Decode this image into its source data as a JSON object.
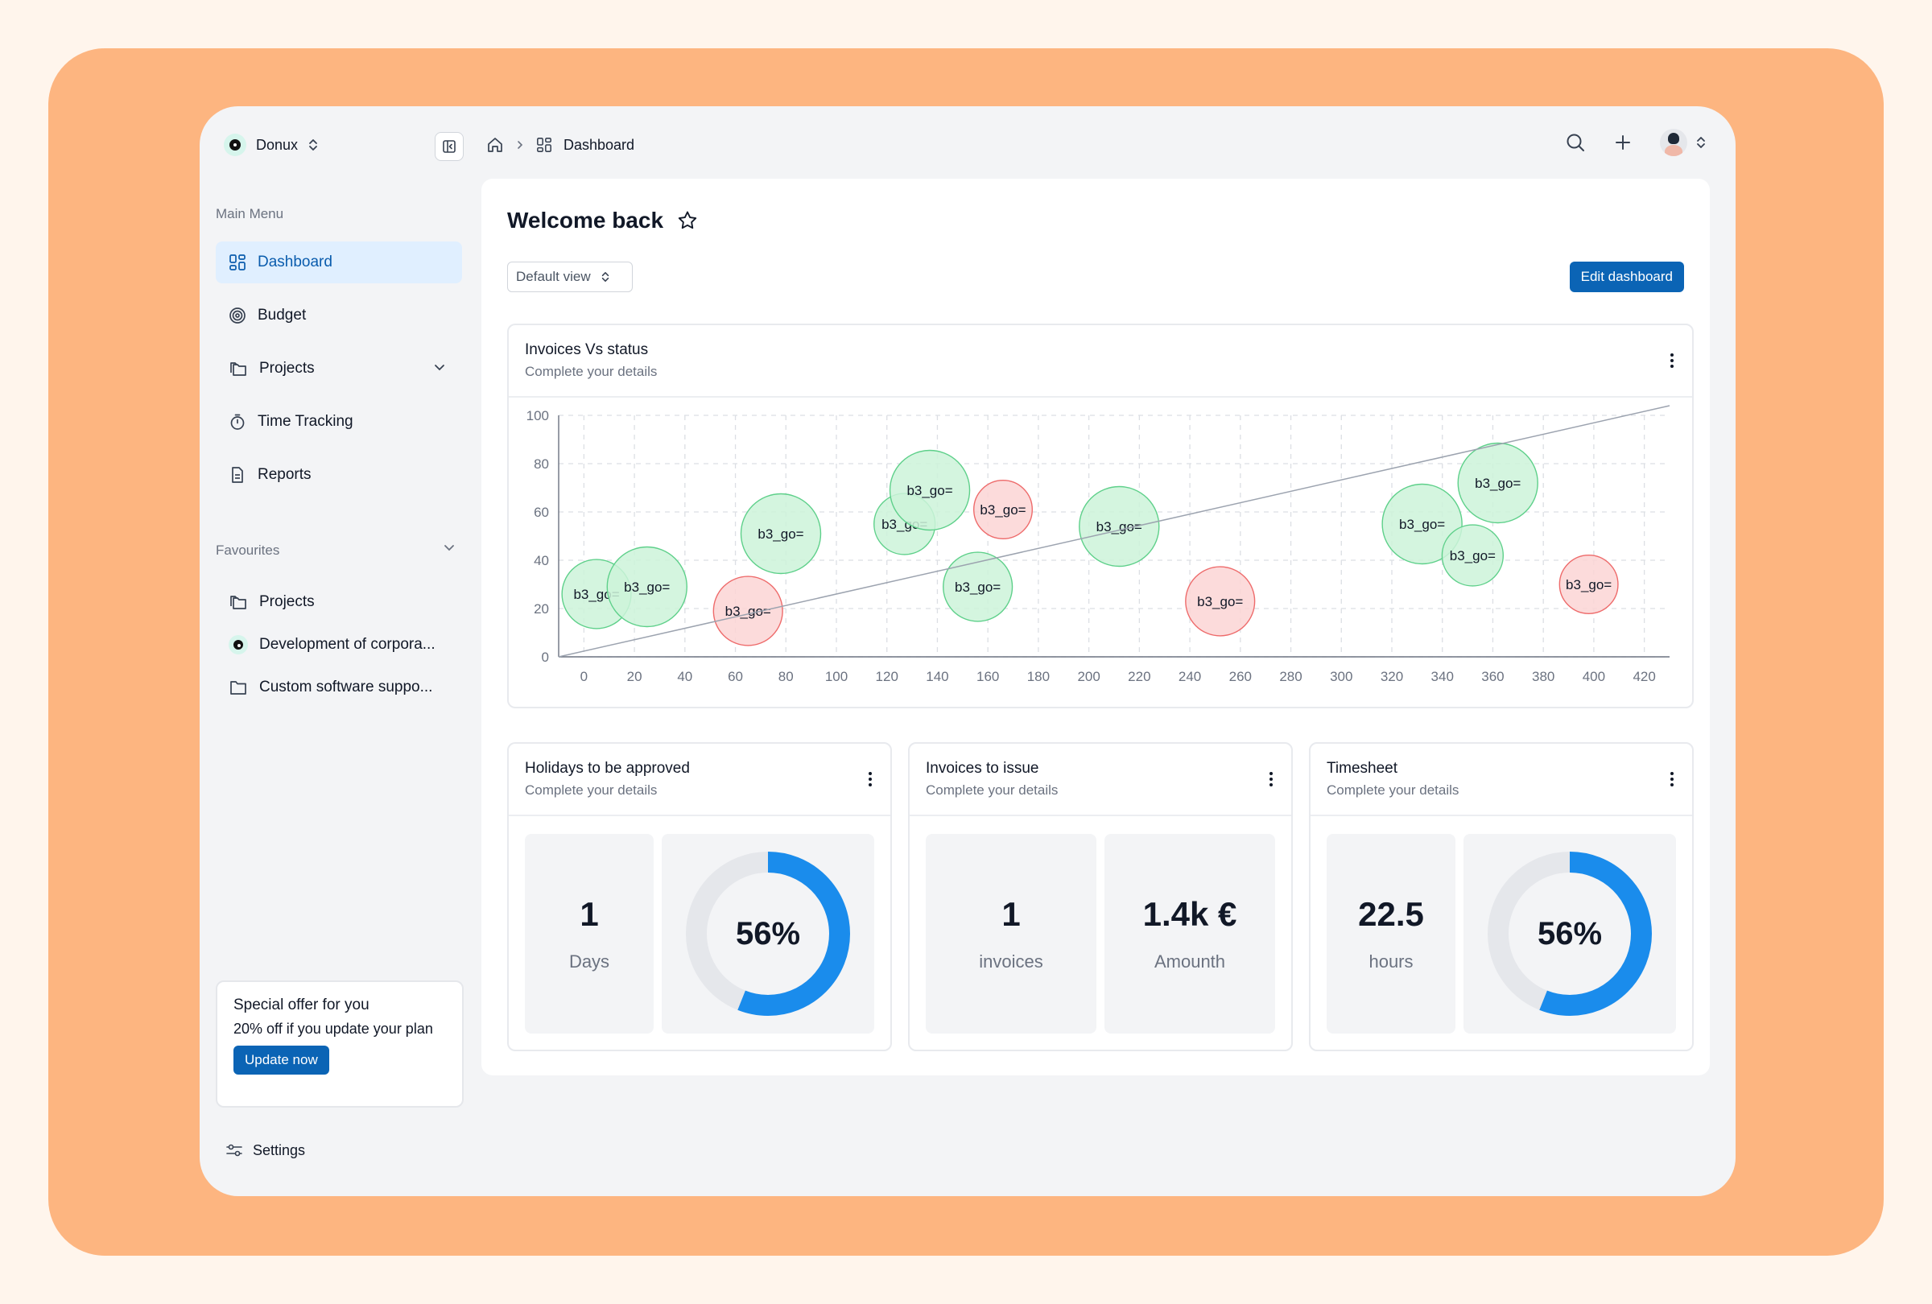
{
  "workspace": {
    "name": "Donux"
  },
  "sidebar": {
    "main_menu_label": "Main Menu",
    "items": [
      {
        "label": "Dashboard",
        "icon": "grid-icon",
        "active": true
      },
      {
        "label": "Budget",
        "icon": "target-icon"
      },
      {
        "label": "Projects",
        "icon": "folders-icon",
        "has_chevron": true
      },
      {
        "label": "Time Tracking",
        "icon": "stopwatch-icon"
      },
      {
        "label": "Reports",
        "icon": "report-icon"
      }
    ],
    "favourites_label": "Favourites",
    "favourites": [
      {
        "label": "Projects",
        "icon": "folders-icon"
      },
      {
        "label": "Development of corpora...",
        "icon": "donux-logo-icon"
      },
      {
        "label": "Custom software suppo...",
        "icon": "folder-icon"
      }
    ],
    "offer": {
      "title": "Special offer for you",
      "description": "20% off if you update your plan",
      "button": "Update now"
    },
    "settings_label": "Settings"
  },
  "breadcrumb": {
    "current": "Dashboard"
  },
  "page": {
    "title": "Welcome back",
    "view_select": "Default view",
    "edit_button": "Edit dashboard"
  },
  "chart_card": {
    "title": "Invoices Vs status",
    "subtitle": "Complete your details"
  },
  "chart_data": {
    "type": "scatter",
    "title": "Invoices Vs status",
    "subtitle": "Complete your details",
    "xlim": [
      -10,
      430
    ],
    "ylim": [
      0,
      100
    ],
    "x_ticks": [
      0,
      20,
      40,
      60,
      80,
      100,
      120,
      140,
      160,
      180,
      200,
      220,
      240,
      260,
      280,
      300,
      320,
      340,
      360,
      380,
      400,
      420
    ],
    "y_ticks": [
      0,
      20,
      40,
      60,
      80,
      100
    ],
    "grid": true,
    "colors": {
      "green_fill": "#cdf3d9",
      "green_stroke": "#5ed08a",
      "red_fill": "#fbd5d5",
      "red_stroke": "#ee6b6b"
    },
    "trendline": {
      "start": [
        -10,
        0
      ],
      "end": [
        430,
        104
      ]
    },
    "points": [
      {
        "x": 5,
        "y": 26,
        "size": 26,
        "label": "b3_go=",
        "status": "green"
      },
      {
        "x": 25,
        "y": 29,
        "size": 30,
        "label": "b3_go=",
        "status": "green"
      },
      {
        "x": 65,
        "y": 19,
        "size": 26,
        "label": "b3_go=",
        "status": "red"
      },
      {
        "x": 78,
        "y": 51,
        "size": 30,
        "label": "b3_go=",
        "status": "green"
      },
      {
        "x": 127,
        "y": 55,
        "size": 23,
        "label": "b3_go=",
        "status": "green"
      },
      {
        "x": 137,
        "y": 69,
        "size": 30,
        "label": "b3_go=",
        "status": "green"
      },
      {
        "x": 156,
        "y": 29,
        "size": 26,
        "label": "b3_go=",
        "status": "green"
      },
      {
        "x": 166,
        "y": 61,
        "size": 22,
        "label": "b3_go=",
        "status": "red"
      },
      {
        "x": 212,
        "y": 54,
        "size": 30,
        "label": "b3_go=",
        "status": "green"
      },
      {
        "x": 252,
        "y": 23,
        "size": 26,
        "label": "b3_go=",
        "status": "red"
      },
      {
        "x": 332,
        "y": 55,
        "size": 30,
        "label": "b3_go=",
        "status": "green"
      },
      {
        "x": 352,
        "y": 42,
        "size": 23,
        "label": "b3_go=",
        "status": "green"
      },
      {
        "x": 362,
        "y": 72,
        "size": 30,
        "label": "b3_go=",
        "status": "green"
      },
      {
        "x": 398,
        "y": 30,
        "size": 22,
        "label": "b3_go=",
        "status": "red"
      }
    ]
  },
  "cards": [
    {
      "title": "Holidays to be approved",
      "subtitle": "Complete your details",
      "value": "1",
      "unit": "Days",
      "percent_label": "56%",
      "percent": 56
    },
    {
      "title": "Invoices to issue",
      "subtitle": "Complete your details",
      "value": "1",
      "unit": "invoices",
      "value2": "1.4k €",
      "unit2": "Amounth"
    },
    {
      "title": "Timesheet",
      "subtitle": "Complete your details",
      "value": "22.5",
      "unit": "hours",
      "percent_label": "56%",
      "percent": 56
    }
  ],
  "accent_color": "#0b64b5",
  "donut_color": "#1a8cec"
}
